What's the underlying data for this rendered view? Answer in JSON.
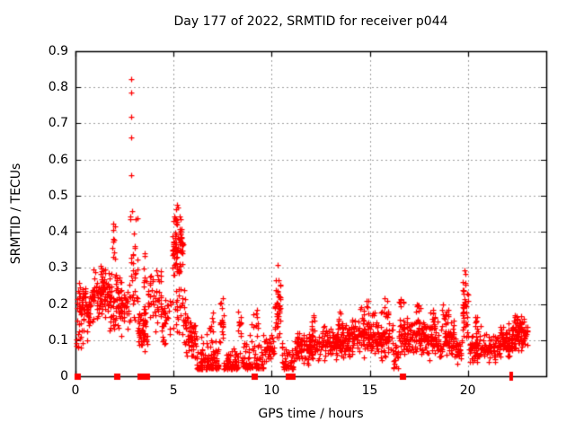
{
  "chart_data": {
    "type": "scatter",
    "title": "Day 177 of 2022, SRMTID for receiver p044",
    "xlabel": "GPS time / hours",
    "ylabel": "SRMTID / TECUs",
    "xlim": [
      0,
      24
    ],
    "ylim": [
      0,
      0.9
    ],
    "xticks": {
      "values": [
        0,
        5,
        10,
        15,
        20
      ],
      "labels": [
        "0",
        "5",
        "10",
        "15",
        "20"
      ]
    },
    "yticks": {
      "values": [
        0,
        0.1,
        0.2,
        0.3,
        0.4,
        0.5,
        0.6,
        0.7,
        0.8,
        0.9
      ],
      "labels": [
        "0",
        "0.1",
        "0.2",
        "0.3",
        "0.4",
        "0.5",
        "0.6",
        "0.7",
        "0.8",
        "0.9"
      ]
    },
    "grid": {
      "x": [
        5,
        10,
        15,
        20
      ],
      "y": [
        0.1,
        0.2,
        0.3,
        0.4,
        0.5,
        0.6,
        0.7,
        0.8
      ],
      "style": "dashed",
      "on": true
    },
    "legend": "none",
    "marker": "plus",
    "colors": {
      "points": "#ff0000",
      "grid": "#a0a0a0",
      "axis": "#000000",
      "background": "#ffffff"
    },
    "outlier_points": [
      [
        2.83,
        0.822
      ],
      [
        2.83,
        0.785
      ],
      [
        2.84,
        0.718
      ],
      [
        2.83,
        0.662
      ],
      [
        2.85,
        0.558
      ],
      [
        2.88,
        0.458
      ],
      [
        5.18,
        0.475
      ],
      [
        5.24,
        0.468
      ],
      [
        5.12,
        0.462
      ],
      [
        10.3,
        0.308
      ],
      [
        19.85,
        0.293
      ],
      [
        19.88,
        0.283
      ]
    ],
    "zero_marker_squares_x": [
      0.07,
      2.1,
      3.3,
      3.62,
      9.12,
      10.85,
      11.05,
      16.65
    ],
    "zero_marker_bars_x": [
      22.15,
      22.28
    ],
    "density_segments": {
      "format": [
        "x_start_hours",
        "x_end_hours",
        "count",
        "y_min_TECUs",
        "y_max_TECUs",
        "distribution"
      ],
      "rows": [
        [
          0.03,
          0.18,
          16,
          0.08,
          0.24,
          "uniform"
        ],
        [
          0.15,
          0.95,
          72,
          0.13,
          0.27,
          "center"
        ],
        [
          0.2,
          0.75,
          8,
          0.08,
          0.13,
          "uniform"
        ],
        [
          0.9,
          1.75,
          95,
          0.15,
          0.315,
          "center"
        ],
        [
          1.75,
          2.45,
          75,
          0.1,
          0.3,
          "center"
        ],
        [
          1.9,
          2.06,
          10,
          0.3,
          0.43,
          "uniform"
        ],
        [
          2.45,
          2.8,
          26,
          0.12,
          0.27,
          "center"
        ],
        [
          2.78,
          2.9,
          9,
          0.2,
          0.45,
          "uniform"
        ],
        [
          2.9,
          3.18,
          24,
          0.15,
          0.445,
          "uniform"
        ],
        [
          3.15,
          3.65,
          60,
          0.06,
          0.21,
          "center"
        ],
        [
          3.45,
          3.62,
          8,
          0.22,
          0.35,
          "uniform"
        ],
        [
          3.7,
          4.4,
          50,
          0.12,
          0.33,
          "center"
        ],
        [
          4.4,
          4.98,
          32,
          0.08,
          0.25,
          "center"
        ],
        [
          4.95,
          5.5,
          88,
          0.25,
          0.478,
          "center"
        ],
        [
          5.0,
          5.58,
          28,
          0.1,
          0.25,
          "uniform"
        ],
        [
          5.5,
          6.15,
          62,
          0.04,
          0.18,
          "center"
        ],
        [
          6.15,
          7.35,
          115,
          0.02,
          0.13,
          "low"
        ],
        [
          6.8,
          7.1,
          8,
          0.12,
          0.18,
          "uniform"
        ],
        [
          7.35,
          7.56,
          18,
          0.05,
          0.24,
          "center"
        ],
        [
          7.56,
          8.3,
          62,
          0.02,
          0.11,
          "low"
        ],
        [
          8.3,
          8.46,
          12,
          0.06,
          0.2,
          "uniform"
        ],
        [
          8.46,
          9.6,
          85,
          0.02,
          0.13,
          "low"
        ],
        [
          8.95,
          9.35,
          10,
          0.13,
          0.185,
          "uniform"
        ],
        [
          9.6,
          10.15,
          45,
          0.03,
          0.12,
          "center"
        ],
        [
          10.15,
          10.46,
          42,
          0.08,
          0.305,
          "center"
        ],
        [
          10.46,
          11.15,
          52,
          0.02,
          0.1,
          "low"
        ],
        [
          11.15,
          12.5,
          115,
          0.03,
          0.13,
          "center"
        ],
        [
          12.0,
          12.2,
          8,
          0.125,
          0.17,
          "uniform"
        ],
        [
          12.5,
          14.0,
          135,
          0.04,
          0.15,
          "center"
        ],
        [
          13.35,
          13.6,
          10,
          0.13,
          0.18,
          "uniform"
        ],
        [
          14.0,
          15.3,
          115,
          0.05,
          0.17,
          "center"
        ],
        [
          14.4,
          15.3,
          14,
          0.15,
          0.21,
          "uniform"
        ],
        [
          15.3,
          16.2,
          80,
          0.04,
          0.16,
          "center"
        ],
        [
          15.55,
          15.95,
          12,
          0.15,
          0.22,
          "uniform"
        ],
        [
          16.2,
          16.45,
          18,
          0.02,
          0.09,
          "uniform"
        ],
        [
          16.45,
          17.0,
          52,
          0.05,
          0.18,
          "center"
        ],
        [
          16.5,
          16.72,
          7,
          0.17,
          0.215,
          "uniform"
        ],
        [
          17.0,
          19.4,
          205,
          0.04,
          0.16,
          "center"
        ],
        [
          17.35,
          17.6,
          10,
          0.15,
          0.2,
          "uniform"
        ],
        [
          18.1,
          18.35,
          10,
          0.15,
          0.19,
          "uniform"
        ],
        [
          18.7,
          19.05,
          12,
          0.15,
          0.2,
          "uniform"
        ],
        [
          19.4,
          19.72,
          25,
          0.03,
          0.12,
          "center"
        ],
        [
          19.72,
          20.0,
          38,
          0.1,
          0.29,
          "center"
        ],
        [
          20.0,
          20.65,
          50,
          0.03,
          0.14,
          "center"
        ],
        [
          20.35,
          20.52,
          7,
          0.13,
          0.165,
          "uniform"
        ],
        [
          20.65,
          21.65,
          70,
          0.03,
          0.13,
          "center"
        ],
        [
          21.65,
          22.25,
          62,
          0.05,
          0.15,
          "center"
        ],
        [
          22.25,
          22.9,
          95,
          0.06,
          0.18,
          "center"
        ],
        [
          22.9,
          23.05,
          10,
          0.08,
          0.14,
          "uniform"
        ]
      ]
    }
  }
}
